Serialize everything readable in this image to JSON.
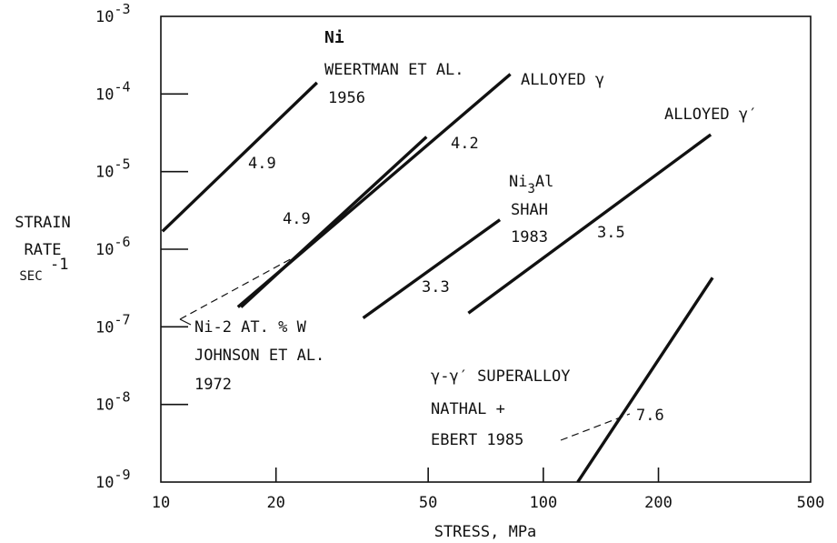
{
  "chart_data": {
    "type": "line",
    "x_scale": "log",
    "y_scale": "log",
    "xlim": [
      10,
      500
    ],
    "ylim": [
      1e-09,
      0.001
    ],
    "grid": false,
    "xlabel": "STRESS, MPa",
    "ylabel_lines": [
      "STRAIN",
      "RATE",
      "SEC"
    ],
    "ylabel_exponent": "-1",
    "x_ticks": [
      {
        "value": 10,
        "label": "10"
      },
      {
        "value": 20,
        "label": "20"
      },
      {
        "value": 50,
        "label": "50"
      },
      {
        "value": 100,
        "label": "100"
      },
      {
        "value": 200,
        "label": "200"
      },
      {
        "value": 500,
        "label": "500"
      }
    ],
    "y_ticks": [
      {
        "value": 1e-09,
        "exp": "-9"
      },
      {
        "value": 1e-08,
        "exp": "-8"
      },
      {
        "value": 1e-07,
        "exp": "-7"
      },
      {
        "value": 1e-06,
        "exp": "-6"
      },
      {
        "value": 1e-05,
        "exp": "-5"
      },
      {
        "value": 0.0001,
        "exp": "-4"
      },
      {
        "value": 0.001,
        "exp": "-3"
      }
    ],
    "series": [
      {
        "x": [
          10.1,
          25.6
        ],
        "y": [
          1.7e-06,
          0.00014
        ],
        "slope_label": "4.9"
      },
      {
        "x": [
          15.9,
          82.0
        ],
        "y": [
          1.8e-07,
          0.00018
        ]
      },
      {
        "x": [
          16.2,
          49.5
        ],
        "y": [
          1.8e-07,
          2.8e-05
        ]
      },
      {
        "x": [
          33.8,
          77.0
        ],
        "y": [
          1.3e-07,
          2.4e-06
        ],
        "slope_label": "3.3"
      },
      {
        "x": [
          63.7,
          274.0
        ],
        "y": [
          1.5e-07,
          3e-05
        ],
        "slope_label": "3.5"
      },
      {
        "x": [
          123.0,
          277.0
        ],
        "y": [
          1e-09,
          4.3e-07
        ],
        "slope_label": "7.6"
      }
    ],
    "annotations": {
      "ni_title": "Ni",
      "weertman": "WEERTMAN ET AL.",
      "weertman_year": "1956",
      "alloyed_gamma": "ALLOYED γ",
      "alloyed_gamma_prime": "ALLOYED γ′",
      "slope_42": "4.2",
      "slope_49_lower": "4.9",
      "ni3al_ni": "Ni",
      "ni3al_sub": "3",
      "ni3al_al": "Al",
      "shah": "SHAH",
      "shah_year": "1983",
      "niw": "Ni-2 AT. % W",
      "johnson": "JOHNSON ET AL.",
      "johnson_year": "1972",
      "superalloy": "γ-γ′ SUPERALLOY",
      "nathal": "NATHAL +",
      "ebert": "EBERT 1985"
    }
  }
}
